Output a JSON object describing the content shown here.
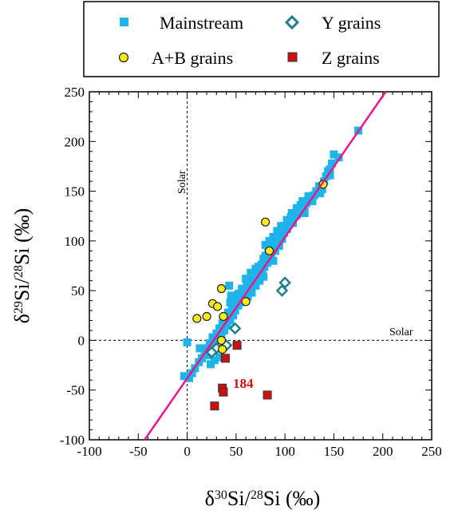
{
  "chart_data": {
    "type": "scatter",
    "xlabel": {
      "delta": "δ",
      "sup1": "30",
      "mid": "Si/",
      "sup2": "28",
      "tail": "Si (‰)"
    },
    "ylabel": {
      "delta": "δ",
      "sup1": "29",
      "mid": "Si/",
      "sup2": "28",
      "tail": "Si (‰)"
    },
    "xlim": [
      -100,
      250
    ],
    "ylim": [
      -100,
      250
    ],
    "xticks": [
      -100,
      -50,
      0,
      50,
      100,
      150,
      200,
      250
    ],
    "yticks": [
      -100,
      -50,
      0,
      50,
      100,
      150,
      200,
      250
    ],
    "grid": false,
    "legend": {
      "position": "top",
      "entries": [
        {
          "label": "Mainstream",
          "marker": "square",
          "color": "#1eb4ea"
        },
        {
          "label": "Y grains",
          "marker": "diamond-open",
          "color": "#1e7f8a"
        },
        {
          "label": "A+B grains",
          "marker": "circle",
          "color": "#f5ec1a"
        },
        {
          "label": "Z grains",
          "marker": "square",
          "color": "#cc1111"
        }
      ]
    },
    "annotations": {
      "solar_vertical": {
        "label": "Solar",
        "x": 0
      },
      "solar_horizontal": {
        "label": "Solar",
        "y": 0
      },
      "callout": {
        "label": "184",
        "x": 42,
        "y": -43
      }
    },
    "fit_line": {
      "color": "#e8168c",
      "x": [
        -43.5,
        203
      ],
      "y": [
        -100,
        250
      ]
    },
    "series": [
      {
        "name": "Mainstream",
        "color": "#1eb4ea",
        "marker": "square",
        "points": [
          [
            175,
            211
          ],
          [
            150,
            187
          ],
          [
            155,
            184
          ],
          [
            148,
            178
          ],
          [
            146,
            172
          ],
          [
            142,
            165
          ],
          [
            140,
            160
          ],
          [
            135,
            155
          ],
          [
            136,
            148
          ],
          [
            130,
            146
          ],
          [
            128,
            140
          ],
          [
            124,
            145
          ],
          [
            120,
            135
          ],
          [
            118,
            140
          ],
          [
            115,
            130
          ],
          [
            112,
            133
          ],
          [
            110,
            125
          ],
          [
            107,
            128
          ],
          [
            104,
            118
          ],
          [
            102,
            121
          ],
          [
            100,
            115
          ],
          [
            98,
            110
          ],
          [
            95,
            108
          ],
          [
            93,
            103
          ],
          [
            90,
            98
          ],
          [
            88,
            104
          ],
          [
            85,
            95
          ],
          [
            86,
            88
          ],
          [
            83,
            92
          ],
          [
            80,
            85
          ],
          [
            82,
            78
          ],
          [
            78,
            82
          ],
          [
            76,
            76
          ],
          [
            75,
            70
          ],
          [
            73,
            74
          ],
          [
            72,
            68
          ],
          [
            70,
            72
          ],
          [
            68,
            65
          ],
          [
            66,
            60
          ],
          [
            65,
            68
          ],
          [
            63,
            58
          ],
          [
            60,
            62
          ],
          [
            61,
            55
          ],
          [
            58,
            50
          ],
          [
            57,
            44
          ],
          [
            56,
            52
          ],
          [
            55,
            40
          ],
          [
            53,
            47
          ],
          [
            52,
            35
          ],
          [
            50,
            42
          ],
          [
            49,
            30
          ],
          [
            48,
            37
          ],
          [
            47,
            25
          ],
          [
            46,
            32
          ],
          [
            44,
            20
          ],
          [
            42,
            28
          ],
          [
            41,
            15
          ],
          [
            40,
            22
          ],
          [
            38,
            10
          ],
          [
            36,
            17
          ],
          [
            35,
            5
          ],
          [
            33,
            12
          ],
          [
            31,
            0
          ],
          [
            30,
            7
          ],
          [
            28,
            -5
          ],
          [
            26,
            3
          ],
          [
            25,
            -10
          ],
          [
            23,
            -3
          ],
          [
            21,
            -15
          ],
          [
            20,
            -8
          ],
          [
            18,
            -12
          ],
          [
            15,
            -18
          ],
          [
            13,
            -8
          ],
          [
            12,
            -22
          ],
          [
            8,
            -28
          ],
          [
            5,
            -33
          ],
          [
            2,
            -38
          ],
          [
            0,
            -2
          ],
          [
            -3,
            -36
          ],
          [
            28,
            -20
          ],
          [
            33,
            -17
          ],
          [
            24,
            -24
          ],
          [
            66,
            48
          ],
          [
            70,
            55
          ],
          [
            74,
            60
          ],
          [
            78,
            64
          ],
          [
            62,
            44
          ],
          [
            80,
            96
          ],
          [
            84,
            100
          ],
          [
            92,
            110
          ],
          [
            96,
            115
          ],
          [
            106,
            124
          ],
          [
            108,
            118
          ],
          [
            112,
            126
          ],
          [
            116,
            136
          ],
          [
            120,
            128
          ],
          [
            122,
            138
          ],
          [
            126,
            142
          ],
          [
            132,
            150
          ],
          [
            138,
            152
          ],
          [
            144,
            170
          ],
          [
            146,
            166
          ],
          [
            88,
            80
          ],
          [
            90,
            90
          ],
          [
            94,
            95
          ],
          [
            97,
            102
          ],
          [
            99,
            108
          ],
          [
            102,
            112
          ],
          [
            44,
            38
          ],
          [
            45,
            45
          ],
          [
            52,
            46
          ],
          [
            54,
            38
          ],
          [
            58,
            42
          ],
          [
            60,
            48
          ],
          [
            64,
            52
          ],
          [
            68,
            58
          ],
          [
            71,
            62
          ],
          [
            74,
            66
          ],
          [
            77,
            70
          ],
          [
            79,
            74
          ],
          [
            43,
            55
          ]
        ]
      },
      {
        "name": "Y grains",
        "color": "#1e7f8a",
        "marker": "diamond-open",
        "points": [
          [
            100,
            58
          ],
          [
            97,
            50
          ],
          [
            49,
            12
          ],
          [
            30,
            -8
          ],
          [
            25,
            -12
          ],
          [
            40,
            -5
          ]
        ]
      },
      {
        "name": "A+B grains",
        "color": "#f5ec1a",
        "marker": "circle",
        "points": [
          [
            80,
            119
          ],
          [
            139,
            157
          ],
          [
            84,
            90
          ],
          [
            35,
            52
          ],
          [
            26,
            37
          ],
          [
            31,
            34
          ],
          [
            60,
            39
          ],
          [
            37,
            24
          ],
          [
            20,
            24
          ],
          [
            10,
            22
          ],
          [
            35,
            0
          ],
          [
            36,
            -9
          ]
        ]
      },
      {
        "name": "Z grains",
        "color": "#cc1111",
        "marker": "square",
        "points": [
          [
            51,
            -5
          ],
          [
            39,
            -18
          ],
          [
            36,
            -48
          ],
          [
            37,
            -52
          ],
          [
            82,
            -55
          ],
          [
            28,
            -66
          ]
        ]
      }
    ]
  }
}
